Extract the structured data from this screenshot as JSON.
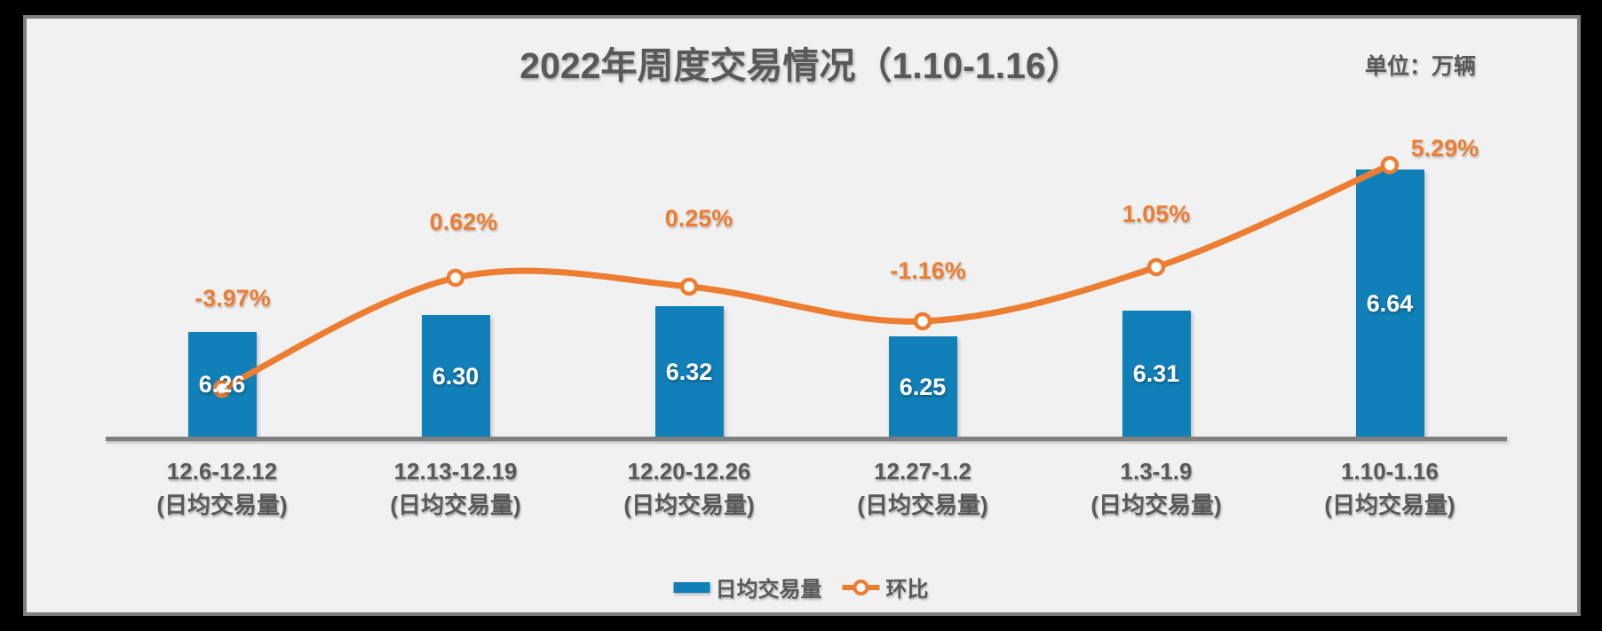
{
  "header": {
    "title": "2022年周度交易情况（1.10-1.16）",
    "unit_label": "单位：万辆"
  },
  "colors": {
    "bar": "#1180B8",
    "line": "#ED7D31",
    "gray_text": "#595959",
    "axis": "#808080",
    "chart_background": "#F1F1F1",
    "frame": "#000000",
    "bar_value_text": "#FFFFFF"
  },
  "legend": {
    "items": [
      {
        "label": "日均交易量",
        "marker": "bar-swatch"
      },
      {
        "label": "环比",
        "marker": "line-with-circle"
      }
    ]
  },
  "chart_data": {
    "type": "bar+line combo",
    "title": "2022年周度交易情况（1.10-1.16）",
    "unit": "万辆",
    "categories": [
      "12.6-12.12",
      "12.13-12.19",
      "12.20-12.26",
      "12.27-1.2",
      "1.3-1.9",
      "1.10-1.16"
    ],
    "category_sublabel": "(日均交易量)",
    "series": [
      {
        "name": "日均交易量",
        "type": "bar",
        "values": [
          6.26,
          6.3,
          6.32,
          6.25,
          6.31,
          6.64
        ],
        "value_labels": [
          "6.26",
          "6.30",
          "6.32",
          "6.25",
          "6.31",
          "6.64"
        ]
      },
      {
        "name": "环比",
        "type": "line",
        "unit": "%",
        "values": [
          -3.97,
          0.62,
          0.25,
          -1.16,
          1.05,
          5.29
        ],
        "value_labels": [
          "-3.97%",
          "0.62%",
          "0.25%",
          "-1.16%",
          "1.05%",
          "5.29%"
        ]
      }
    ],
    "xlabel": "",
    "ylabel": "",
    "grid": false,
    "value_axis_visible": false,
    "legend_position": "bottom"
  }
}
